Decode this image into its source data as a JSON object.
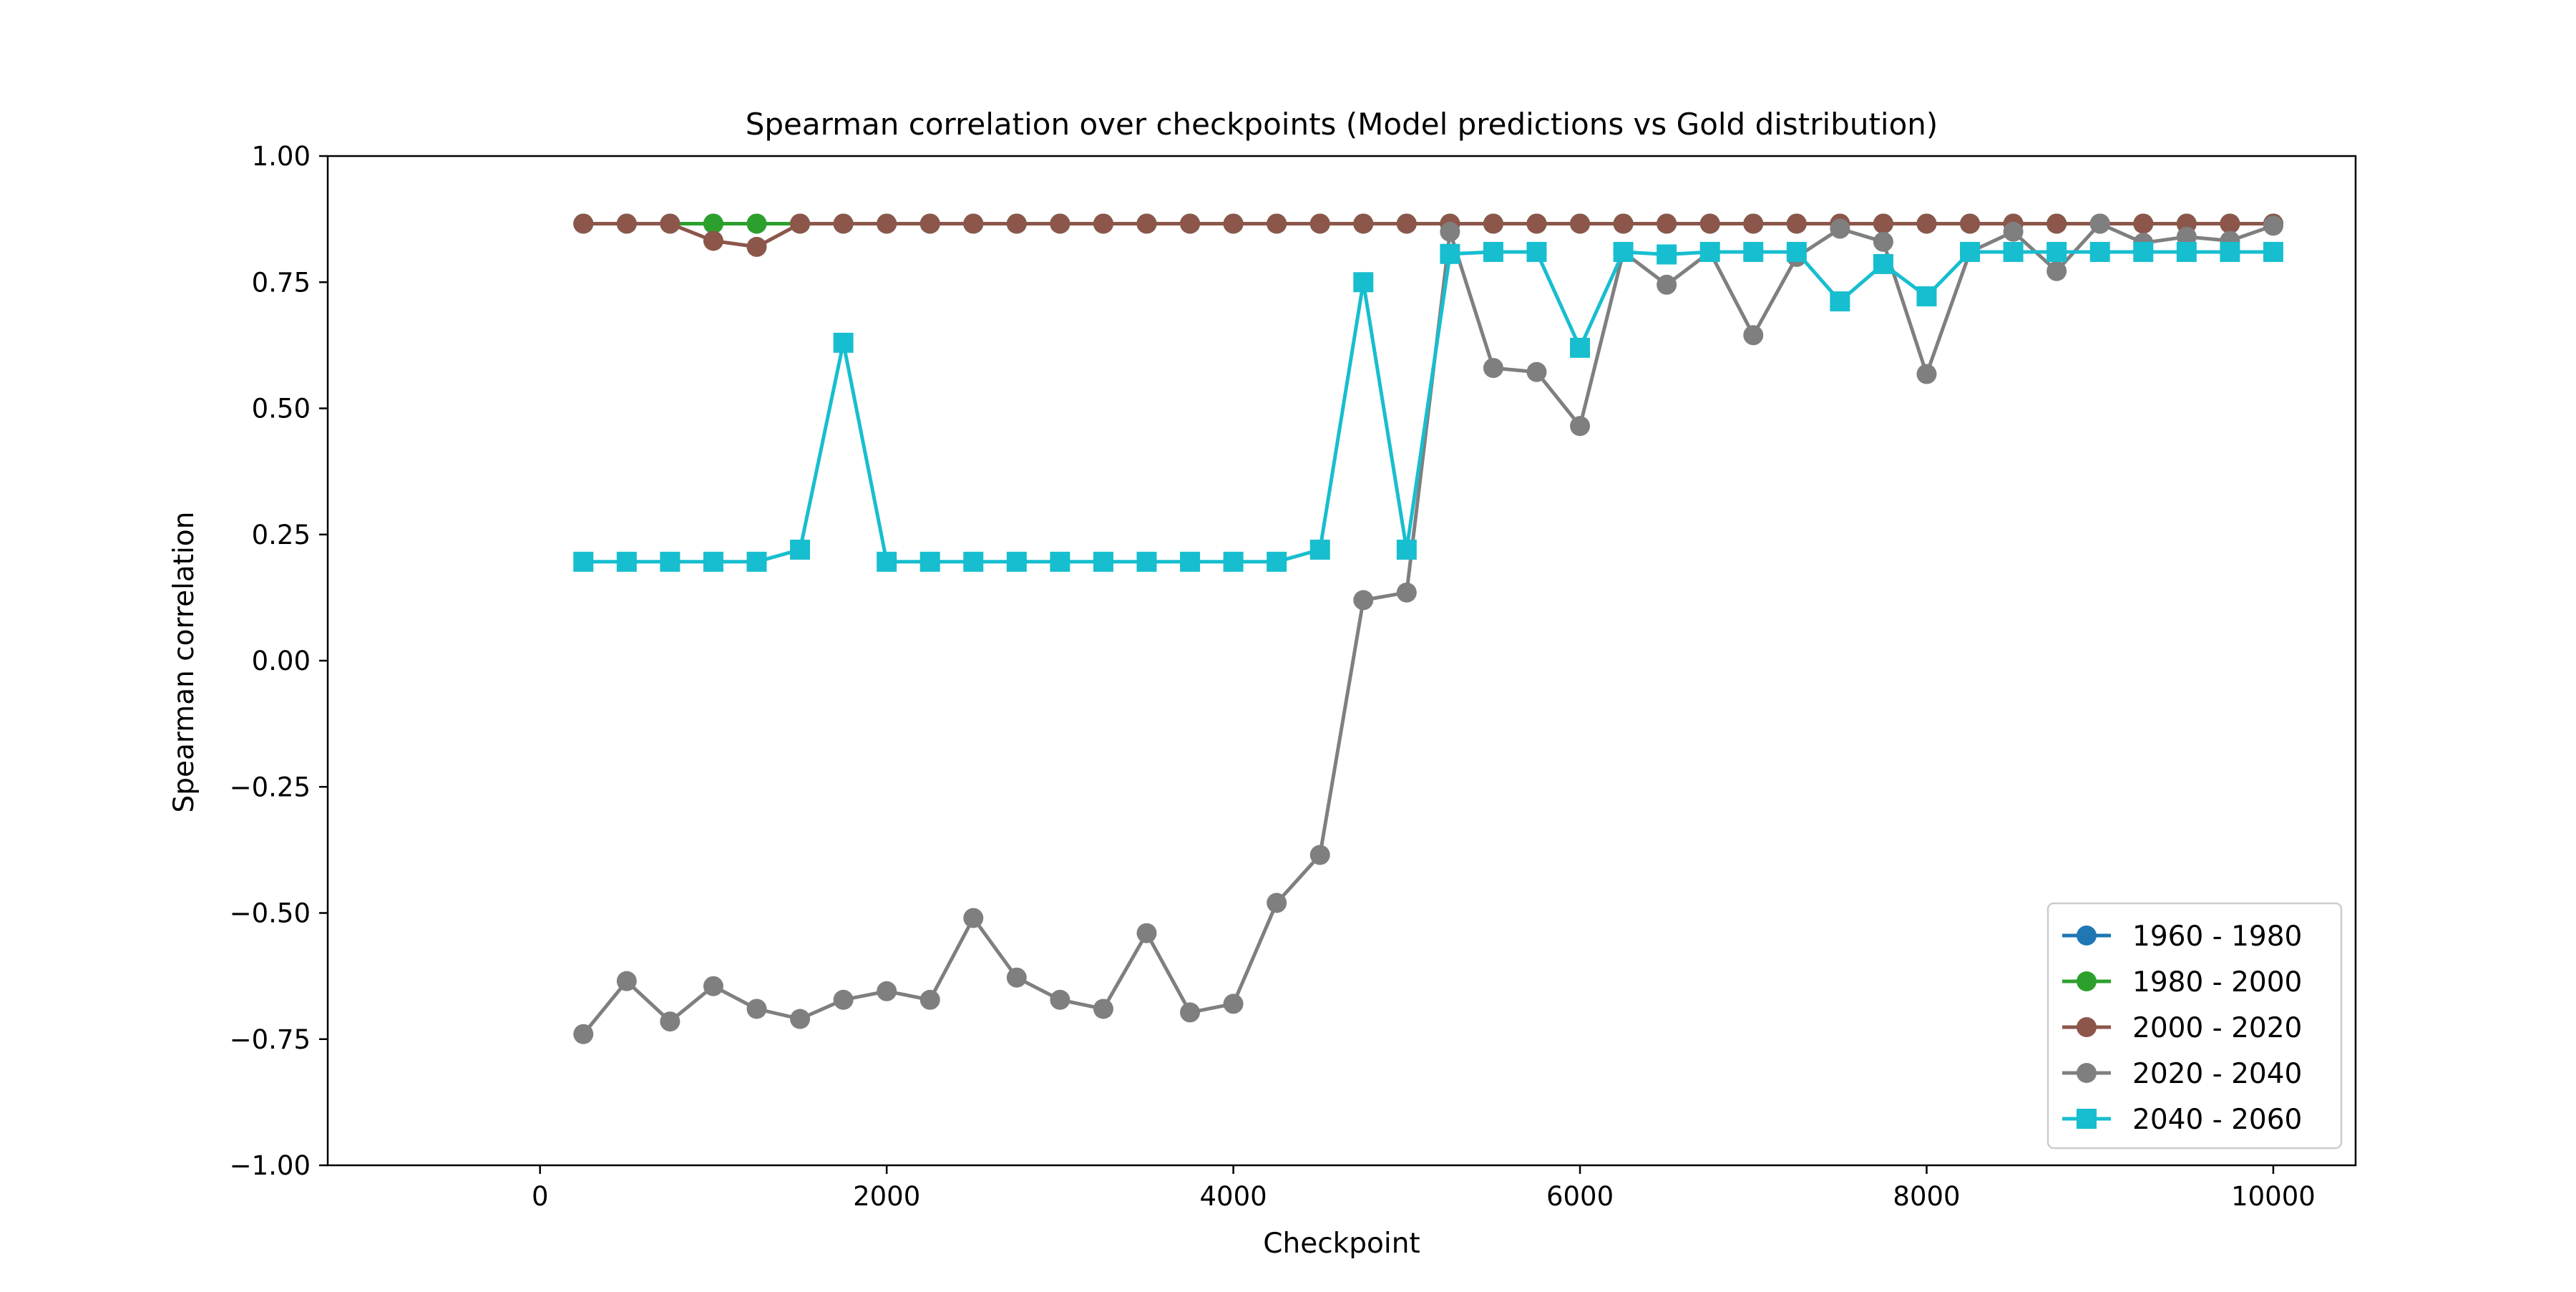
{
  "chart_data": {
    "type": "line",
    "title": "Spearman correlation over checkpoints (Model predictions vs Gold distribution)",
    "xlabel": "Checkpoint",
    "ylabel": "Spearman correlation",
    "xlim": [
      -1225,
      10475
    ],
    "ylim": [
      -1.0,
      1.0
    ],
    "xticks": [
      0,
      2000,
      4000,
      6000,
      8000,
      10000
    ],
    "xtick_labels": [
      "0",
      "2000",
      "4000",
      "6000",
      "8000",
      "10000"
    ],
    "yticks": [
      -1.0,
      -0.75,
      -0.5,
      -0.25,
      0.0,
      0.25,
      0.5,
      0.75,
      1.0
    ],
    "ytick_labels": [
      "−1.00",
      "−0.75",
      "−0.50",
      "−0.25",
      "0.00",
      "0.25",
      "0.50",
      "0.75",
      "1.00"
    ],
    "grid": false,
    "legend_position": "lower-right",
    "x": [
      250,
      500,
      750,
      1000,
      1250,
      1500,
      1750,
      2000,
      2250,
      2500,
      2750,
      3000,
      3250,
      3500,
      3750,
      4000,
      4250,
      4500,
      4750,
      5000,
      5250,
      5500,
      5750,
      6000,
      6250,
      6500,
      6750,
      7000,
      7250,
      7500,
      7750,
      8000,
      8250,
      8500,
      8750,
      9000,
      9250,
      9500,
      9750,
      10000
    ],
    "series": [
      {
        "name": "1960 - 1980",
        "color": "#1f77b4",
        "marker": "circle",
        "values": [
          0.866,
          0.866,
          0.866,
          0.866,
          0.866,
          0.866,
          0.866,
          0.866,
          0.866,
          0.866,
          0.866,
          0.866,
          0.866,
          0.866,
          0.866,
          0.866,
          0.866,
          0.866,
          0.866,
          0.866,
          0.866,
          0.866,
          0.866,
          0.866,
          0.866,
          0.866,
          0.866,
          0.866,
          0.866,
          0.866,
          0.866,
          0.866,
          0.866,
          0.866,
          0.866,
          0.866,
          0.866,
          0.866,
          0.866,
          0.866
        ]
      },
      {
        "name": "1980 - 2000",
        "color": "#2ca02c",
        "marker": "circle",
        "values": [
          0.866,
          0.866,
          0.866,
          0.866,
          0.866,
          0.866,
          0.866,
          0.866,
          0.866,
          0.866,
          0.866,
          0.866,
          0.866,
          0.866,
          0.866,
          0.866,
          0.866,
          0.866,
          0.866,
          0.866,
          0.866,
          0.866,
          0.866,
          0.866,
          0.866,
          0.866,
          0.866,
          0.866,
          0.866,
          0.866,
          0.866,
          0.866,
          0.866,
          0.866,
          0.866,
          0.866,
          0.866,
          0.866,
          0.866,
          0.866
        ]
      },
      {
        "name": "2000 - 2020",
        "color": "#8c564b",
        "marker": "circle",
        "values": [
          0.866,
          0.866,
          0.866,
          0.832,
          0.82,
          0.866,
          0.866,
          0.866,
          0.866,
          0.866,
          0.866,
          0.866,
          0.866,
          0.866,
          0.866,
          0.866,
          0.866,
          0.866,
          0.866,
          0.866,
          0.866,
          0.866,
          0.866,
          0.866,
          0.866,
          0.866,
          0.866,
          0.866,
          0.866,
          0.866,
          0.866,
          0.866,
          0.866,
          0.866,
          0.866,
          0.866,
          0.866,
          0.866,
          0.866,
          0.866
        ]
      },
      {
        "name": "2020 - 2040",
        "color": "#7f7f7f",
        "marker": "circle",
        "values": [
          -0.74,
          -0.635,
          -0.715,
          -0.645,
          -0.69,
          -0.71,
          -0.672,
          -0.655,
          -0.672,
          -0.51,
          -0.628,
          -0.672,
          -0.69,
          -0.54,
          -0.697,
          -0.68,
          -0.48,
          -0.385,
          0.12,
          0.135,
          0.85,
          0.58,
          0.572,
          0.465,
          0.81,
          0.745,
          0.81,
          0.645,
          0.8,
          0.856,
          0.83,
          0.568,
          0.81,
          0.85,
          0.772,
          0.866,
          0.828,
          0.84,
          0.832,
          0.862
        ]
      },
      {
        "name": "2040 - 2060",
        "color": "#17becf",
        "marker": "square",
        "values": [
          0.196,
          0.196,
          0.196,
          0.196,
          0.196,
          0.22,
          0.63,
          0.196,
          0.196,
          0.196,
          0.196,
          0.196,
          0.196,
          0.196,
          0.196,
          0.196,
          0.196,
          0.22,
          0.75,
          0.22,
          0.806,
          0.81,
          0.81,
          0.62,
          0.81,
          0.805,
          0.81,
          0.81,
          0.81,
          0.712,
          0.786,
          0.722,
          0.81,
          0.81,
          0.81,
          0.81,
          0.81,
          0.81,
          0.81,
          0.81
        ]
      }
    ]
  }
}
